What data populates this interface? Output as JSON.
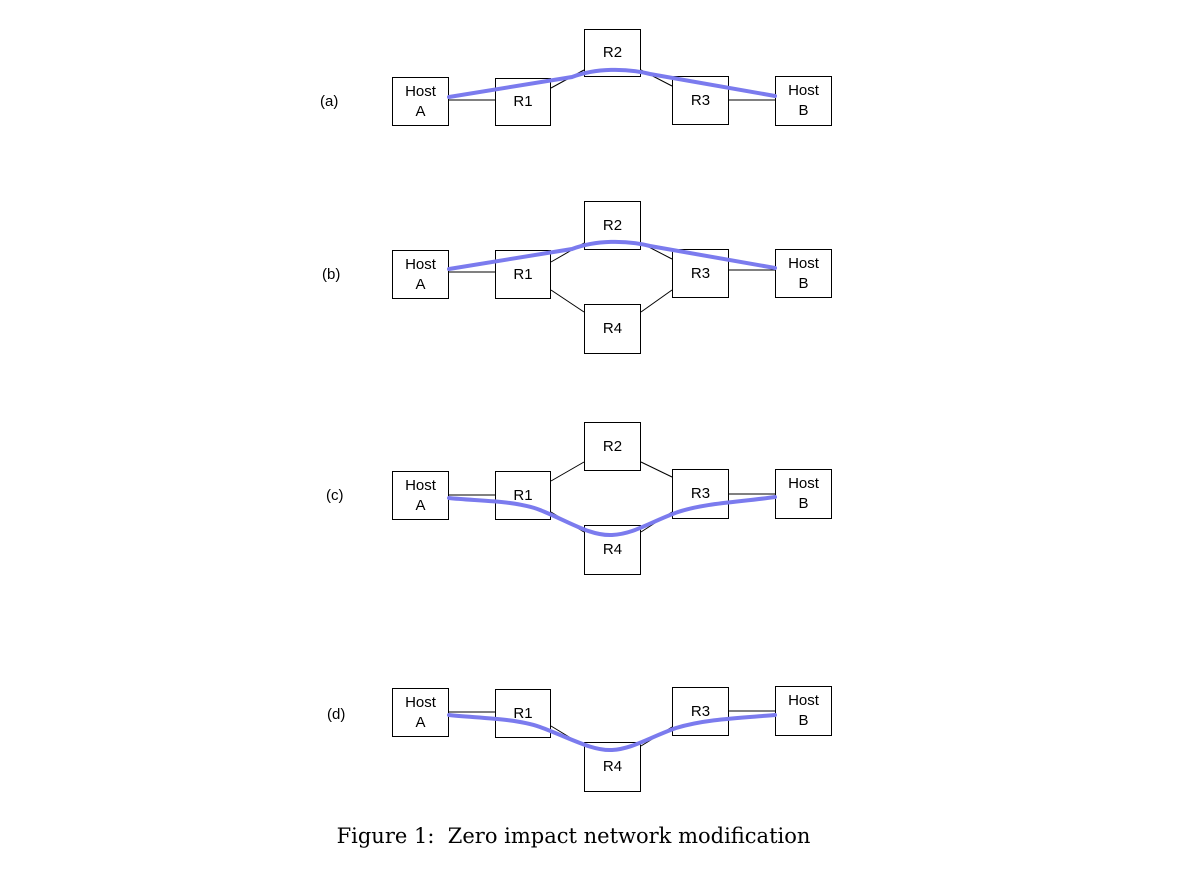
{
  "panels": [
    {
      "label": "(a)",
      "nodes": {
        "host_a": [
          "Host",
          "A"
        ],
        "r1": "R1",
        "r2": "R2",
        "r3": "R3",
        "host_b": [
          "Host",
          "B"
        ]
      }
    },
    {
      "label": "(b)",
      "nodes": {
        "host_a": [
          "Host",
          "A"
        ],
        "r1": "R1",
        "r2": "R2",
        "r3": "R3",
        "r4": "R4",
        "host_b": [
          "Host",
          "B"
        ]
      }
    },
    {
      "label": "(c)",
      "nodes": {
        "host_a": [
          "Host",
          "A"
        ],
        "r1": "R1",
        "r2": "R2",
        "r3": "R3",
        "r4": "R4",
        "host_b": [
          "Host",
          "B"
        ]
      }
    },
    {
      "label": "(d)",
      "nodes": {
        "host_a": [
          "Host",
          "A"
        ],
        "r1": "R1",
        "r3": "R3",
        "r4": "R4",
        "host_b": [
          "Host",
          "B"
        ]
      }
    }
  ],
  "caption": {
    "label": "Figure 1:",
    "text": "Zero impact network modification"
  },
  "colors": {
    "path": "#7b7bee",
    "link": "#000000",
    "box_border": "#000000"
  }
}
